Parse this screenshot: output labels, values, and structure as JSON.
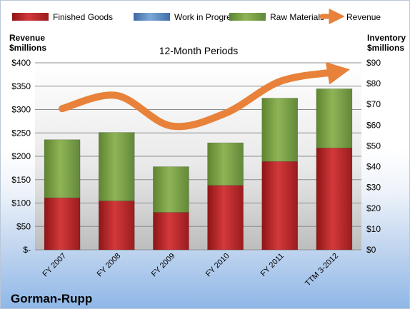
{
  "chart_data": {
    "type": "bar",
    "stacked": true,
    "title": "12-Month Periods",
    "company": "Gorman-Rupp",
    "categories": [
      "FY 2007",
      "FY 2008",
      "FY 2009",
      "FY 2010",
      "FY 2011",
      "TTM 3-2012"
    ],
    "left_axis": {
      "title_line1": "Revenue",
      "title_line2": "$millions",
      "range": [
        0,
        400
      ],
      "ticks": [
        "$-",
        "$50",
        "$100",
        "$150",
        "$200",
        "$250",
        "$300",
        "$350",
        "$400"
      ]
    },
    "right_axis": {
      "title_line1": "Inventory",
      "title_line2": "$millions",
      "range": [
        0,
        90
      ],
      "ticks": [
        "$0",
        "$10",
        "$20",
        "$30",
        "$40",
        "$50",
        "$60",
        "$70",
        "$80",
        "$90"
      ]
    },
    "series": [
      {
        "name": "Finished Goods",
        "axis": "right",
        "color": "#c0282a",
        "values": [
          25,
          23.5,
          18,
          31,
          42.5,
          49
        ]
      },
      {
        "name": "Work in Progress",
        "axis": "right",
        "color": "#4f81bd",
        "values": [
          0,
          0,
          0,
          0,
          0,
          0
        ]
      },
      {
        "name": "Raw Materials",
        "axis": "right",
        "color": "#7aa23f",
        "values": [
          28,
          33,
          22,
          20.5,
          30.5,
          28.5
        ]
      },
      {
        "name": "Revenue",
        "axis": "left",
        "type": "line",
        "color": "#e8823a",
        "values": [
          302,
          330,
          265,
          292,
          360,
          380
        ]
      }
    ],
    "grid": true,
    "legend_position": "top"
  }
}
